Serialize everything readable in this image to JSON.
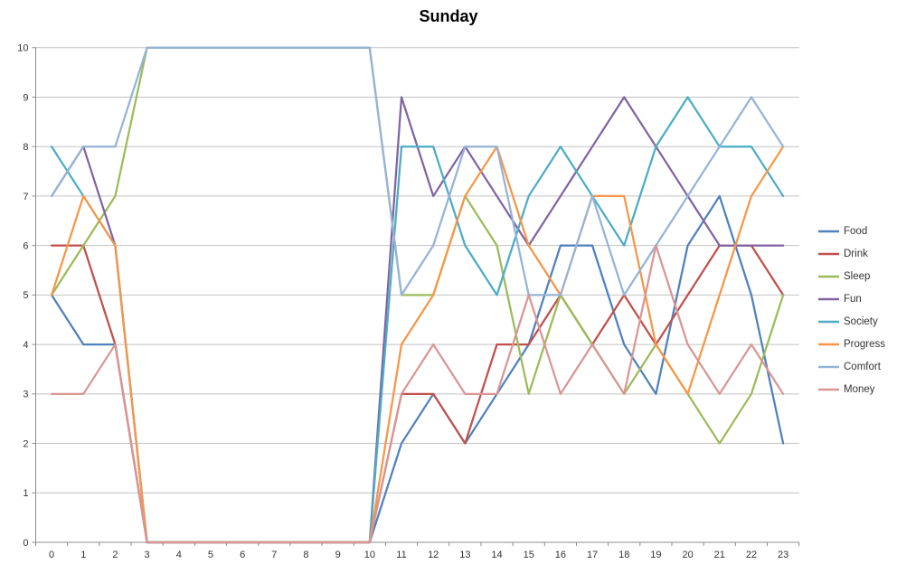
{
  "title": "Sunday",
  "chart_data": {
    "type": "line",
    "x": [
      0,
      1,
      2,
      3,
      4,
      5,
      6,
      7,
      8,
      9,
      10,
      11,
      12,
      13,
      14,
      15,
      16,
      17,
      18,
      19,
      20,
      21,
      22,
      23
    ],
    "xlabel": "",
    "ylabel": "",
    "ylim": [
      0,
      10
    ],
    "yticks": [
      0,
      1,
      2,
      3,
      4,
      5,
      6,
      7,
      8,
      9,
      10
    ],
    "grid": true,
    "legend_position": "right",
    "axis_color": "#8c8c8c",
    "gridline_color": "#c2c2c2",
    "tick_label_color": "#333333",
    "series": [
      {
        "name": "Food",
        "color": "#4F81BD",
        "values": [
          5,
          4,
          4,
          0,
          0,
          0,
          0,
          0,
          0,
          0,
          0,
          2,
          3,
          2,
          3,
          4,
          6,
          6,
          4,
          3,
          6,
          7,
          5,
          2
        ]
      },
      {
        "name": "Drink",
        "color": "#C0504D",
        "values": [
          6,
          6,
          4,
          0,
          0,
          0,
          0,
          0,
          0,
          0,
          0,
          3,
          3,
          2,
          4,
          4,
          5,
          4,
          5,
          4,
          5,
          6,
          6,
          5
        ]
      },
      {
        "name": "Sleep",
        "color": "#9BBB59",
        "values": [
          5,
          6,
          7,
          10,
          10,
          10,
          10,
          10,
          10,
          10,
          10,
          5,
          5,
          7,
          6,
          3,
          5,
          4,
          3,
          4,
          3,
          2,
          3,
          5
        ]
      },
      {
        "name": "Fun",
        "color": "#8064A2",
        "values": [
          7,
          8,
          6,
          0,
          0,
          0,
          0,
          0,
          0,
          0,
          0,
          9,
          7,
          8,
          7,
          6,
          7,
          8,
          9,
          8,
          7,
          6,
          6,
          6
        ]
      },
      {
        "name": "Society",
        "color": "#4BACC6",
        "values": [
          8,
          7,
          6,
          0,
          0,
          0,
          0,
          0,
          0,
          0,
          0,
          8,
          8,
          6,
          5,
          7,
          8,
          7,
          6,
          8,
          9,
          8,
          8,
          7
        ]
      },
      {
        "name": "Progress",
        "color": "#F79646",
        "values": [
          5,
          7,
          6,
          0,
          0,
          0,
          0,
          0,
          0,
          0,
          0,
          4,
          5,
          7,
          8,
          6,
          5,
          7,
          7,
          4,
          3,
          5,
          7,
          8
        ]
      },
      {
        "name": "Comfort",
        "color": "#95B3D7",
        "values": [
          7,
          8,
          8,
          10,
          10,
          10,
          10,
          10,
          10,
          10,
          10,
          5,
          6,
          8,
          8,
          5,
          5,
          7,
          5,
          6,
          7,
          8,
          9,
          8
        ]
      },
      {
        "name": "Money",
        "color": "#D99694",
        "values": [
          3,
          3,
          4,
          0,
          0,
          0,
          0,
          0,
          0,
          0,
          0,
          3,
          4,
          3,
          3,
          5,
          3,
          4,
          3,
          6,
          4,
          3,
          4,
          3
        ]
      }
    ]
  }
}
